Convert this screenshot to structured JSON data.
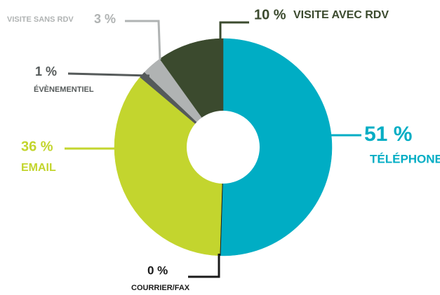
{
  "chart_data": {
    "type": "donut",
    "categories": [
      "TÉLÉPHONE",
      "COURRIER/FAX",
      "EMAIL",
      "ÉVÈNEMENTIEL",
      "VISITE SANS RDV",
      "VISITE AVEC RDV"
    ],
    "values": [
      51,
      0,
      36,
      1,
      3,
      10
    ],
    "value_labels": [
      "51 %",
      "0 %",
      "36 %",
      "1 %",
      "3 %",
      "10 %"
    ],
    "colors": [
      "#00adc4",
      "#1a1a1a",
      "#c3d52e",
      "#555a5a",
      "#b0b3b3",
      "#3b4a2e"
    ]
  }
}
